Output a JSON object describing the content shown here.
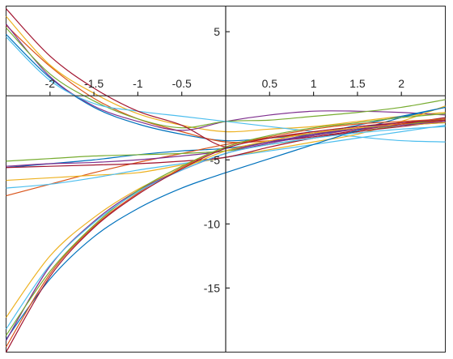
{
  "chart_data": {
    "type": "line",
    "xlim": [
      -2.5,
      2.5
    ],
    "ylim": [
      -20,
      7
    ],
    "grid": false,
    "axis_location": "origin",
    "x_ticks": [
      -2,
      -1.5,
      -1,
      -0.5,
      0.5,
      1,
      1.5,
      2
    ],
    "x_tick_labels": [
      "-2",
      "-1.5",
      "-1",
      "-0.5",
      "0.5",
      "1",
      "1.5",
      "2"
    ],
    "y_ticks": [
      5,
      -5,
      -10,
      -15
    ],
    "y_tick_labels": [
      "5",
      "-5",
      "-10",
      "-15"
    ],
    "x": [
      -2.5,
      -2.0,
      -1.5,
      -1.0,
      -0.5,
      0.0,
      0.5,
      1.0,
      1.5,
      2.0,
      2.5
    ],
    "series": [
      {
        "color": "#0072BD",
        "values": [
          4.8,
          1.4,
          -0.9,
          -2.2,
          -3.0,
          -3.5,
          -3.3,
          -3.0,
          -2.6,
          -2.3,
          -2.1
        ]
      },
      {
        "color": "#D95319",
        "values": [
          5.5,
          2.3,
          -0.2,
          -1.8,
          -2.8,
          -3.6,
          -3.5,
          -3.1,
          -2.6,
          -2.2,
          -1.9
        ]
      },
      {
        "color": "#EDB120",
        "values": [
          6.2,
          2.4,
          0.2,
          -1.4,
          -2.3,
          -2.8,
          -2.6,
          -2.4,
          -2.0,
          -1.6,
          -1.3
        ]
      },
      {
        "color": "#7E2F8E",
        "values": [
          5.6,
          1.5,
          -0.8,
          -2.0,
          -2.7,
          -2.0,
          -1.5,
          -1.2,
          -1.2,
          -1.3,
          -1.5
        ]
      },
      {
        "color": "#77AC30",
        "values": [
          5.3,
          1.7,
          -0.4,
          -1.8,
          -2.5,
          -2.0,
          -1.9,
          -1.6,
          -1.3,
          -0.9,
          -0.3
        ]
      },
      {
        "color": "#4DBEEE",
        "values": [
          4.6,
          1.2,
          -0.6,
          -1.2,
          -1.6,
          -2.0,
          -2.4,
          -2.8,
          -3.2,
          -3.5,
          -3.6
        ]
      },
      {
        "color": "#A2142F",
        "values": [
          6.8,
          3.1,
          0.6,
          -1.2,
          -2.3,
          -4.0,
          -3.6,
          -3.2,
          -2.7,
          -2.2,
          -1.7
        ]
      },
      {
        "color": "#0072BD",
        "values": [
          -5.6,
          -5.3,
          -5.0,
          -4.6,
          -4.3,
          -4.1,
          -3.6,
          -3.0,
          -2.3,
          -1.6,
          -0.9
        ]
      },
      {
        "color": "#D95319",
        "values": [
          -7.8,
          -6.9,
          -6.0,
          -5.2,
          -4.5,
          -3.8,
          -3.3,
          -2.9,
          -2.5,
          -2.2,
          -2.0
        ]
      },
      {
        "color": "#EDB120",
        "values": [
          -6.6,
          -6.4,
          -6.2,
          -6.0,
          -5.4,
          -4.8,
          -4.2,
          -3.6,
          -3.0,
          -2.0,
          -0.8
        ]
      },
      {
        "color": "#7E2F8E",
        "values": [
          -5.5,
          -5.3,
          -5.2,
          -5.0,
          -4.7,
          -4.3,
          -3.6,
          -3.0,
          -2.5,
          -2.1,
          -1.8
        ]
      },
      {
        "color": "#77AC30",
        "values": [
          -5.1,
          -4.9,
          -4.7,
          -4.6,
          -4.5,
          -4.3,
          -3.8,
          -3.3,
          -2.8,
          -2.3,
          -1.8
        ]
      },
      {
        "color": "#4DBEEE",
        "values": [
          -7.2,
          -6.9,
          -6.4,
          -5.8,
          -5.3,
          -4.8,
          -4.3,
          -3.8,
          -3.3,
          -2.8,
          -2.3
        ]
      },
      {
        "color": "#A2142F",
        "values": [
          -5.6,
          -5.5,
          -5.4,
          -5.3,
          -5.1,
          -4.8,
          -4.0,
          -3.3,
          -2.8,
          -2.4,
          -2.0
        ]
      },
      {
        "color": "#0072BD",
        "values": [
          -19.0,
          -14.3,
          -11.0,
          -8.8,
          -7.2,
          -6.0,
          -4.9,
          -3.8,
          -2.7,
          -1.7,
          -0.9
        ]
      },
      {
        "color": "#D95319",
        "values": [
          -19.6,
          -13.9,
          -10.2,
          -7.6,
          -5.6,
          -4.0,
          -3.2,
          -2.6,
          -2.2,
          -2.0,
          -1.8
        ]
      },
      {
        "color": "#EDB120",
        "values": [
          -17.3,
          -12.5,
          -9.5,
          -7.3,
          -5.7,
          -4.3,
          -3.5,
          -2.9,
          -2.5,
          -2.3,
          -2.1
        ]
      },
      {
        "color": "#7E2F8E",
        "values": [
          -19.1,
          -13.3,
          -9.8,
          -7.4,
          -5.8,
          -4.5,
          -3.7,
          -3.1,
          -2.6,
          -2.3,
          -2.0
        ]
      },
      {
        "color": "#77AC30",
        "values": [
          -18.7,
          -13.7,
          -10.1,
          -7.4,
          -5.5,
          -4.0,
          -3.1,
          -2.5,
          -2.1,
          -1.7,
          -1.4
        ]
      },
      {
        "color": "#4DBEEE",
        "values": [
          -18.2,
          -13.2,
          -9.9,
          -7.5,
          -5.8,
          -4.5,
          -3.8,
          -3.3,
          -2.9,
          -2.6,
          -2.4
        ]
      },
      {
        "color": "#A2142F",
        "values": [
          -20.0,
          -14.1,
          -10.3,
          -7.7,
          -5.7,
          -4.1,
          -3.3,
          -2.8,
          -2.4,
          -2.1,
          -1.9
        ]
      }
    ]
  }
}
